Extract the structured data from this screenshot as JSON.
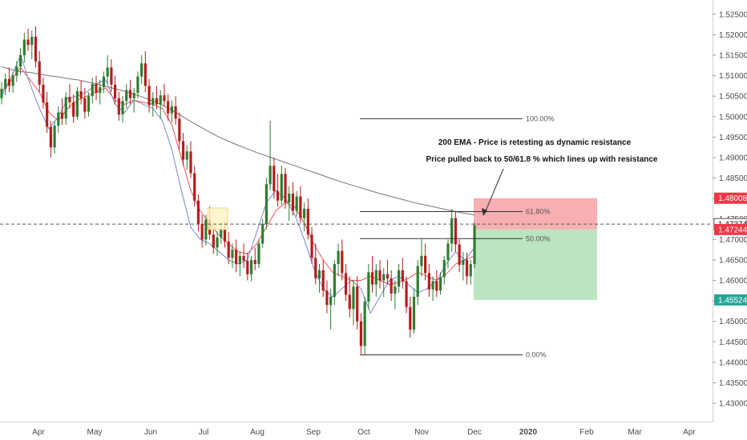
{
  "chart_data": {
    "type": "candlestick",
    "y_ticks": [
      "1.52500",
      "1.52000",
      "1.51500",
      "1.51000",
      "1.50500",
      "1.50000",
      "1.49500",
      "1.49000",
      "1.48500",
      "1.48000",
      "1.47500",
      "1.47000",
      "1.46500",
      "1.46000",
      "1.45500",
      "1.45000",
      "1.44500",
      "1.44000",
      "1.43500",
      "1.43000"
    ],
    "ylim": [
      1.4265,
      1.5275
    ],
    "x_ticks": [
      "Apr",
      "May",
      "Jun",
      "Jul",
      "Aug",
      "Sep",
      "Oct",
      "Nov",
      "Dec",
      "2020",
      "Feb",
      "Mar",
      "Apr"
    ],
    "grid": false,
    "price_tags": {
      "stop": {
        "value": 1.48008,
        "text": "1.48008",
        "color": "#f23645"
      },
      "current": {
        "value": 1.47374,
        "text": "1.47374",
        "color": "#ffffff"
      },
      "entry": {
        "value": 1.47244,
        "text": "1.47244",
        "color": "#f23645"
      },
      "target": {
        "value": 1.45524,
        "text": "1.45524",
        "color": "#26a69a"
      }
    },
    "fibonacci": [
      {
        "label": "100.00%",
        "value": 1.4995
      },
      {
        "label": "61.80%",
        "value": 1.4768
      },
      {
        "label": "50.00%",
        "value": 1.4702
      },
      {
        "label": "0.00%",
        "value": 1.4418
      }
    ],
    "annotations": [
      "200  EMA - Price is retesting as dynamic resistance",
      "Price pulled back to 50/61.8 % which lines up with resistance"
    ],
    "candle_colors": {
      "up": "#2e7d32",
      "down": "#b71c1c"
    },
    "ema_colors": {
      "ema200": "#757575",
      "ema_mid": "#ef5350",
      "ema_fast": "#7986cb"
    },
    "candles": [
      [
        1.5045,
        1.5085,
        1.503,
        1.5068
      ],
      [
        1.5068,
        1.5105,
        1.5052,
        1.5092
      ],
      [
        1.5092,
        1.512,
        1.506,
        1.5075
      ],
      [
        1.5075,
        1.511,
        1.5058,
        1.51
      ],
      [
        1.51,
        1.5135,
        1.5085,
        1.5122
      ],
      [
        1.5122,
        1.5168,
        1.5102,
        1.515
      ],
      [
        1.515,
        1.5205,
        1.5132,
        1.5188
      ],
      [
        1.5188,
        1.5215,
        1.516,
        1.5175
      ],
      [
        1.5175,
        1.521,
        1.514,
        1.5195
      ],
      [
        1.5195,
        1.522,
        1.512,
        1.5135
      ],
      [
        1.5135,
        1.516,
        1.506,
        1.5078
      ],
      [
        1.5078,
        1.5095,
        1.502,
        1.5035
      ],
      [
        1.5035,
        1.506,
        1.496,
        1.4975
      ],
      [
        1.4975,
        1.499,
        1.49,
        1.4925
      ],
      [
        1.4925,
        1.499,
        1.491,
        1.4978
      ],
      [
        1.4978,
        1.5025,
        1.496,
        1.501
      ],
      [
        1.501,
        1.5045,
        1.498,
        1.4995
      ],
      [
        1.4995,
        1.506,
        1.498,
        1.5048
      ],
      [
        1.5048,
        1.508,
        1.502,
        1.5035
      ],
      [
        1.5035,
        1.5055,
        1.4985,
        1.5
      ],
      [
        1.5,
        1.5072,
        1.4992,
        1.5062
      ],
      [
        1.5062,
        1.5088,
        1.503,
        1.5045
      ],
      [
        1.5045,
        1.507,
        1.4995,
        1.5012
      ],
      [
        1.5012,
        1.506,
        1.5,
        1.505
      ],
      [
        1.505,
        1.5095,
        1.5032,
        1.508
      ],
      [
        1.508,
        1.51,
        1.504,
        1.5058
      ],
      [
        1.5058,
        1.509,
        1.503,
        1.5072
      ],
      [
        1.5072,
        1.511,
        1.5058,
        1.5098
      ],
      [
        1.5098,
        1.515,
        1.508,
        1.512
      ],
      [
        1.512,
        1.514,
        1.506,
        1.5078
      ],
      [
        1.5078,
        1.51,
        1.503,
        1.5045
      ],
      [
        1.5045,
        1.506,
        1.499,
        1.5005
      ],
      [
        1.5005,
        1.505,
        1.4985,
        1.5038
      ],
      [
        1.5038,
        1.508,
        1.502,
        1.5065
      ],
      [
        1.5065,
        1.509,
        1.503,
        1.5045
      ],
      [
        1.5045,
        1.507,
        1.501,
        1.5058
      ],
      [
        1.5058,
        1.511,
        1.5045,
        1.5098
      ],
      [
        1.5098,
        1.515,
        1.508,
        1.513
      ],
      [
        1.513,
        1.516,
        1.506,
        1.5075
      ],
      [
        1.5075,
        1.5092,
        1.501,
        1.5028
      ],
      [
        1.5028,
        1.506,
        1.5,
        1.5045
      ],
      [
        1.5045,
        1.5075,
        1.5018,
        1.503
      ],
      [
        1.503,
        1.5065,
        1.4995,
        1.5052
      ],
      [
        1.5052,
        1.508,
        1.5025,
        1.5038
      ],
      [
        1.5038,
        1.5055,
        1.499,
        1.5008
      ],
      [
        1.5008,
        1.504,
        1.4985,
        1.5025
      ],
      [
        1.5025,
        1.505,
        1.498,
        1.4995
      ],
      [
        1.4995,
        1.501,
        1.492,
        1.494
      ],
      [
        1.494,
        1.496,
        1.488,
        1.4895
      ],
      [
        1.4895,
        1.493,
        1.487,
        1.4915
      ],
      [
        1.4915,
        1.494,
        1.485,
        1.4862
      ],
      [
        1.4862,
        1.488,
        1.478,
        1.4795
      ],
      [
        1.4795,
        1.481,
        1.472,
        1.4738
      ],
      [
        1.4738,
        1.476,
        1.468,
        1.47
      ],
      [
        1.47,
        1.476,
        1.4685,
        1.4748
      ],
      [
        1.4748,
        1.478,
        1.47,
        1.4712
      ],
      [
        1.4712,
        1.473,
        1.4665,
        1.468
      ],
      [
        1.468,
        1.472,
        1.466,
        1.4705
      ],
      [
        1.4705,
        1.474,
        1.469,
        1.4725
      ],
      [
        1.4725,
        1.4745,
        1.468,
        1.4695
      ],
      [
        1.4695,
        1.4718,
        1.464,
        1.4655
      ],
      [
        1.4655,
        1.469,
        1.463,
        1.4675
      ],
      [
        1.4675,
        1.47,
        1.462,
        1.464
      ],
      [
        1.464,
        1.4672,
        1.461,
        1.466
      ],
      [
        1.466,
        1.469,
        1.463,
        1.4648
      ],
      [
        1.4648,
        1.4668,
        1.46,
        1.4615
      ],
      [
        1.4615,
        1.466,
        1.4598,
        1.465
      ],
      [
        1.465,
        1.468,
        1.4625,
        1.464
      ],
      [
        1.464,
        1.47,
        1.463,
        1.469
      ],
      [
        1.469,
        1.475,
        1.468,
        1.4738
      ],
      [
        1.4738,
        1.485,
        1.4725,
        1.4835
      ],
      [
        1.4835,
        1.499,
        1.482,
        1.488
      ],
      [
        1.488,
        1.49,
        1.48,
        1.4818
      ],
      [
        1.4818,
        1.486,
        1.478,
        1.4795
      ],
      [
        1.4795,
        1.488,
        1.4785,
        1.486
      ],
      [
        1.486,
        1.4875,
        1.4775,
        1.479
      ],
      [
        1.479,
        1.483,
        1.4745,
        1.4812
      ],
      [
        1.4812,
        1.484,
        1.4758,
        1.477
      ],
      [
        1.477,
        1.4818,
        1.4755,
        1.4805
      ],
      [
        1.4805,
        1.483,
        1.474,
        1.4752
      ],
      [
        1.4752,
        1.479,
        1.472,
        1.4775
      ],
      [
        1.4775,
        1.48,
        1.47,
        1.4712
      ],
      [
        1.4712,
        1.473,
        1.464,
        1.4655
      ],
      [
        1.4655,
        1.469,
        1.459,
        1.4605
      ],
      [
        1.4605,
        1.464,
        1.457,
        1.4625
      ],
      [
        1.4625,
        1.465,
        1.456,
        1.4575
      ],
      [
        1.4575,
        1.46,
        1.452,
        1.454
      ],
      [
        1.454,
        1.458,
        1.448,
        1.456
      ],
      [
        1.456,
        1.465,
        1.454,
        1.464
      ],
      [
        1.464,
        1.469,
        1.461,
        1.4672
      ],
      [
        1.4672,
        1.47,
        1.46,
        1.4618
      ],
      [
        1.4618,
        1.464,
        1.455,
        1.4565
      ],
      [
        1.4565,
        1.461,
        1.451,
        1.453
      ],
      [
        1.453,
        1.46,
        1.449,
        1.4585
      ],
      [
        1.4585,
        1.461,
        1.448,
        1.45
      ],
      [
        1.45,
        1.452,
        1.442,
        1.444
      ],
      [
        1.444,
        1.456,
        1.4418,
        1.4548
      ],
      [
        1.4548,
        1.464,
        1.453,
        1.462
      ],
      [
        1.462,
        1.466,
        1.457,
        1.459
      ],
      [
        1.459,
        1.464,
        1.456,
        1.4625
      ],
      [
        1.4625,
        1.465,
        1.458,
        1.46
      ],
      [
        1.46,
        1.463,
        1.456,
        1.4615
      ],
      [
        1.4615,
        1.465,
        1.459,
        1.4605
      ],
      [
        1.4605,
        1.4625,
        1.455,
        1.4568
      ],
      [
        1.4568,
        1.46,
        1.453,
        1.4585
      ],
      [
        1.4585,
        1.464,
        1.457,
        1.4625
      ],
      [
        1.4625,
        1.4655,
        1.458,
        1.4598
      ],
      [
        1.4598,
        1.461,
        1.452,
        1.4535
      ],
      [
        1.4535,
        1.456,
        1.446,
        1.448
      ],
      [
        1.448,
        1.458,
        1.447,
        1.456
      ],
      [
        1.456,
        1.465,
        1.454,
        1.4635
      ],
      [
        1.4635,
        1.47,
        1.461,
        1.466
      ],
      [
        1.466,
        1.469,
        1.46,
        1.4618
      ],
      [
        1.4618,
        1.464,
        1.456,
        1.4578
      ],
      [
        1.4578,
        1.461,
        1.455,
        1.4598
      ],
      [
        1.4598,
        1.4625,
        1.456,
        1.4575
      ],
      [
        1.4575,
        1.462,
        1.4565,
        1.4608
      ],
      [
        1.4608,
        1.466,
        1.459,
        1.465
      ],
      [
        1.465,
        1.47,
        1.463,
        1.469
      ],
      [
        1.469,
        1.4775,
        1.467,
        1.4752
      ],
      [
        1.4752,
        1.477,
        1.467,
        1.4688
      ],
      [
        1.4688,
        1.47,
        1.462,
        1.4638
      ],
      [
        1.4638,
        1.467,
        1.46,
        1.465
      ],
      [
        1.465,
        1.4668,
        1.459,
        1.461
      ],
      [
        1.461,
        1.465,
        1.459,
        1.464
      ],
      [
        1.464,
        1.4742,
        1.463,
        1.4735
      ]
    ],
    "ema200": [
      1.5122,
      1.5115,
      1.511,
      1.5108,
      1.5104,
      1.51,
      1.5097,
      1.5093,
      1.509,
      1.5085,
      1.508,
      1.5074,
      1.5068,
      1.5062,
      1.5055,
      1.5047,
      1.5038,
      1.5028,
      1.5016,
      1.5002,
      1.4988,
      1.4975,
      1.4962,
      1.495,
      1.494,
      1.493,
      1.4921,
      1.4912,
      1.4904,
      1.4896,
      1.4888,
      1.488,
      1.4872,
      1.4864,
      1.4856,
      1.4848,
      1.484,
      1.4833,
      1.4826,
      1.4819,
      1.4812,
      1.4806,
      1.48,
      1.4794,
      1.4788,
      1.4783,
      1.4778,
      1.4773,
      1.4768,
      1.4764,
      1.476
    ],
    "ema_mid": [
      1.506,
      1.5088,
      1.512,
      1.509,
      1.506,
      1.501,
      1.499,
      1.502,
      1.504,
      1.505,
      1.506,
      1.507,
      1.504,
      1.503,
      1.504,
      1.5035,
      1.503,
      1.502,
      1.498,
      1.49,
      1.482,
      1.477,
      1.474,
      1.471,
      1.469,
      1.467,
      1.4665,
      1.469,
      1.473,
      1.477,
      1.479,
      1.478,
      1.474,
      1.469,
      1.465,
      1.462,
      1.461,
      1.46,
      1.46,
      1.461,
      1.46,
      1.459,
      1.4595,
      1.4605,
      1.462,
      1.461,
      1.46,
      1.4615,
      1.464,
      1.465,
      1.466
    ],
    "ema_fast": [
      1.505,
      1.5095,
      1.515,
      1.508,
      1.502,
      1.497,
      1.5,
      1.5045,
      1.505,
      1.506,
      1.508,
      1.509,
      1.503,
      1.501,
      1.504,
      1.503,
      1.502,
      1.499,
      1.492,
      1.482,
      1.473,
      1.47,
      1.469,
      1.467,
      1.465,
      1.464,
      1.465,
      1.472,
      1.479,
      1.482,
      1.48,
      1.476,
      1.47,
      1.463,
      1.458,
      1.456,
      1.458,
      1.46,
      1.458,
      1.452,
      1.456,
      1.46,
      1.461,
      1.459,
      1.457,
      1.458,
      1.46,
      1.464,
      1.467,
      1.465,
      1.468
    ]
  }
}
